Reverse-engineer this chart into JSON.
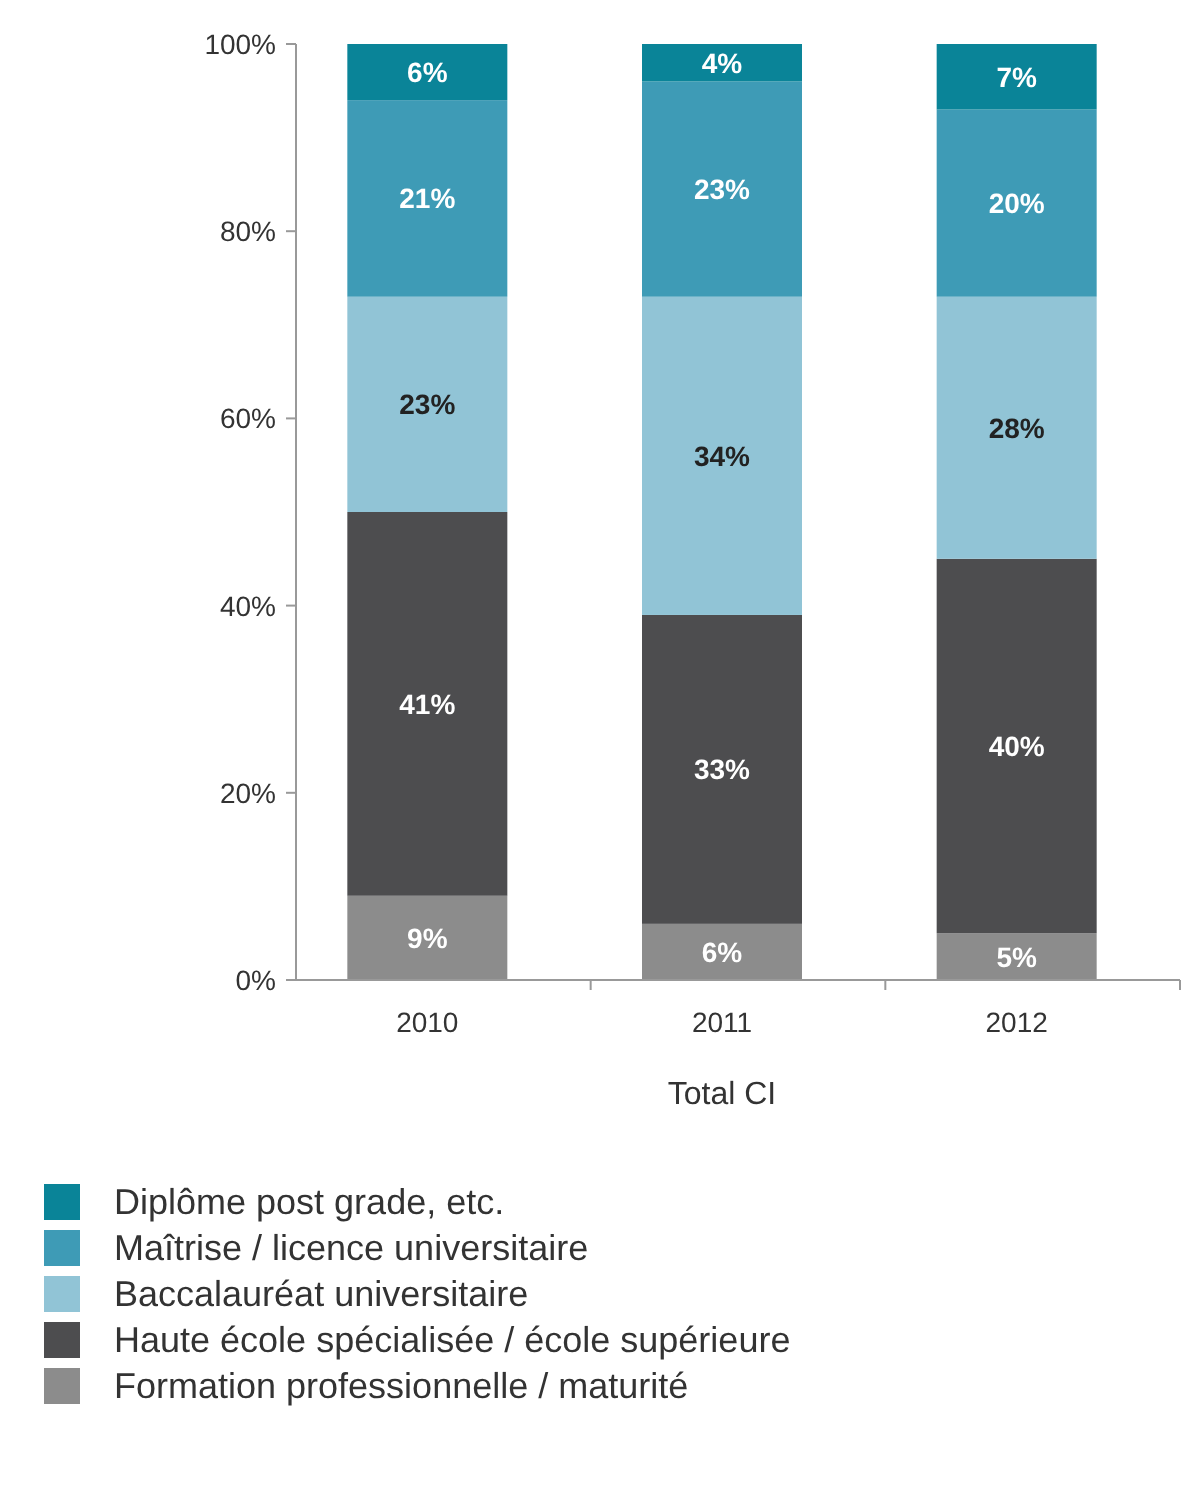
{
  "chart_data": {
    "type": "bar",
    "stacked": true,
    "xlabel": "Total CI",
    "categories": [
      "2010",
      "2011",
      "2012"
    ],
    "ylim": [
      0,
      100
    ],
    "yticks": [
      {
        "value": 0,
        "label": "0%"
      },
      {
        "value": 20,
        "label": "20%"
      },
      {
        "value": 40,
        "label": "40%"
      },
      {
        "value": 60,
        "label": "60%"
      },
      {
        "value": 80,
        "label": "80%"
      },
      {
        "value": 100,
        "label": "100%"
      }
    ],
    "grid": false,
    "legend": "bottom",
    "series": [
      {
        "name": "Formation professionnelle / maturité",
        "color": "#8c8c8c",
        "values": [
          9,
          6,
          5
        ],
        "value_labels": [
          "9%",
          "6%",
          "5%"
        ]
      },
      {
        "name": "Haute école spécialisée / école supérieure",
        "color": "#4d4d4f",
        "values": [
          41,
          33,
          40
        ],
        "value_labels": [
          "41%",
          "33%",
          "40%"
        ]
      },
      {
        "name": "Baccalauréat universitaire",
        "color": "#91c4d6",
        "values": [
          23,
          34,
          28
        ],
        "value_labels": [
          "23%",
          "34%",
          "28%"
        ]
      },
      {
        "name": "Maîtrise / licence universitaire",
        "color": "#3e9bb6",
        "values": [
          21,
          23,
          20
        ],
        "value_labels": [
          "21%",
          "23%",
          "20%"
        ]
      },
      {
        "name": "Diplôme post grade, etc.",
        "color": "#0a8498",
        "values": [
          6,
          4,
          7
        ],
        "value_labels": [
          "6%",
          "4%",
          "7%"
        ]
      }
    ]
  }
}
